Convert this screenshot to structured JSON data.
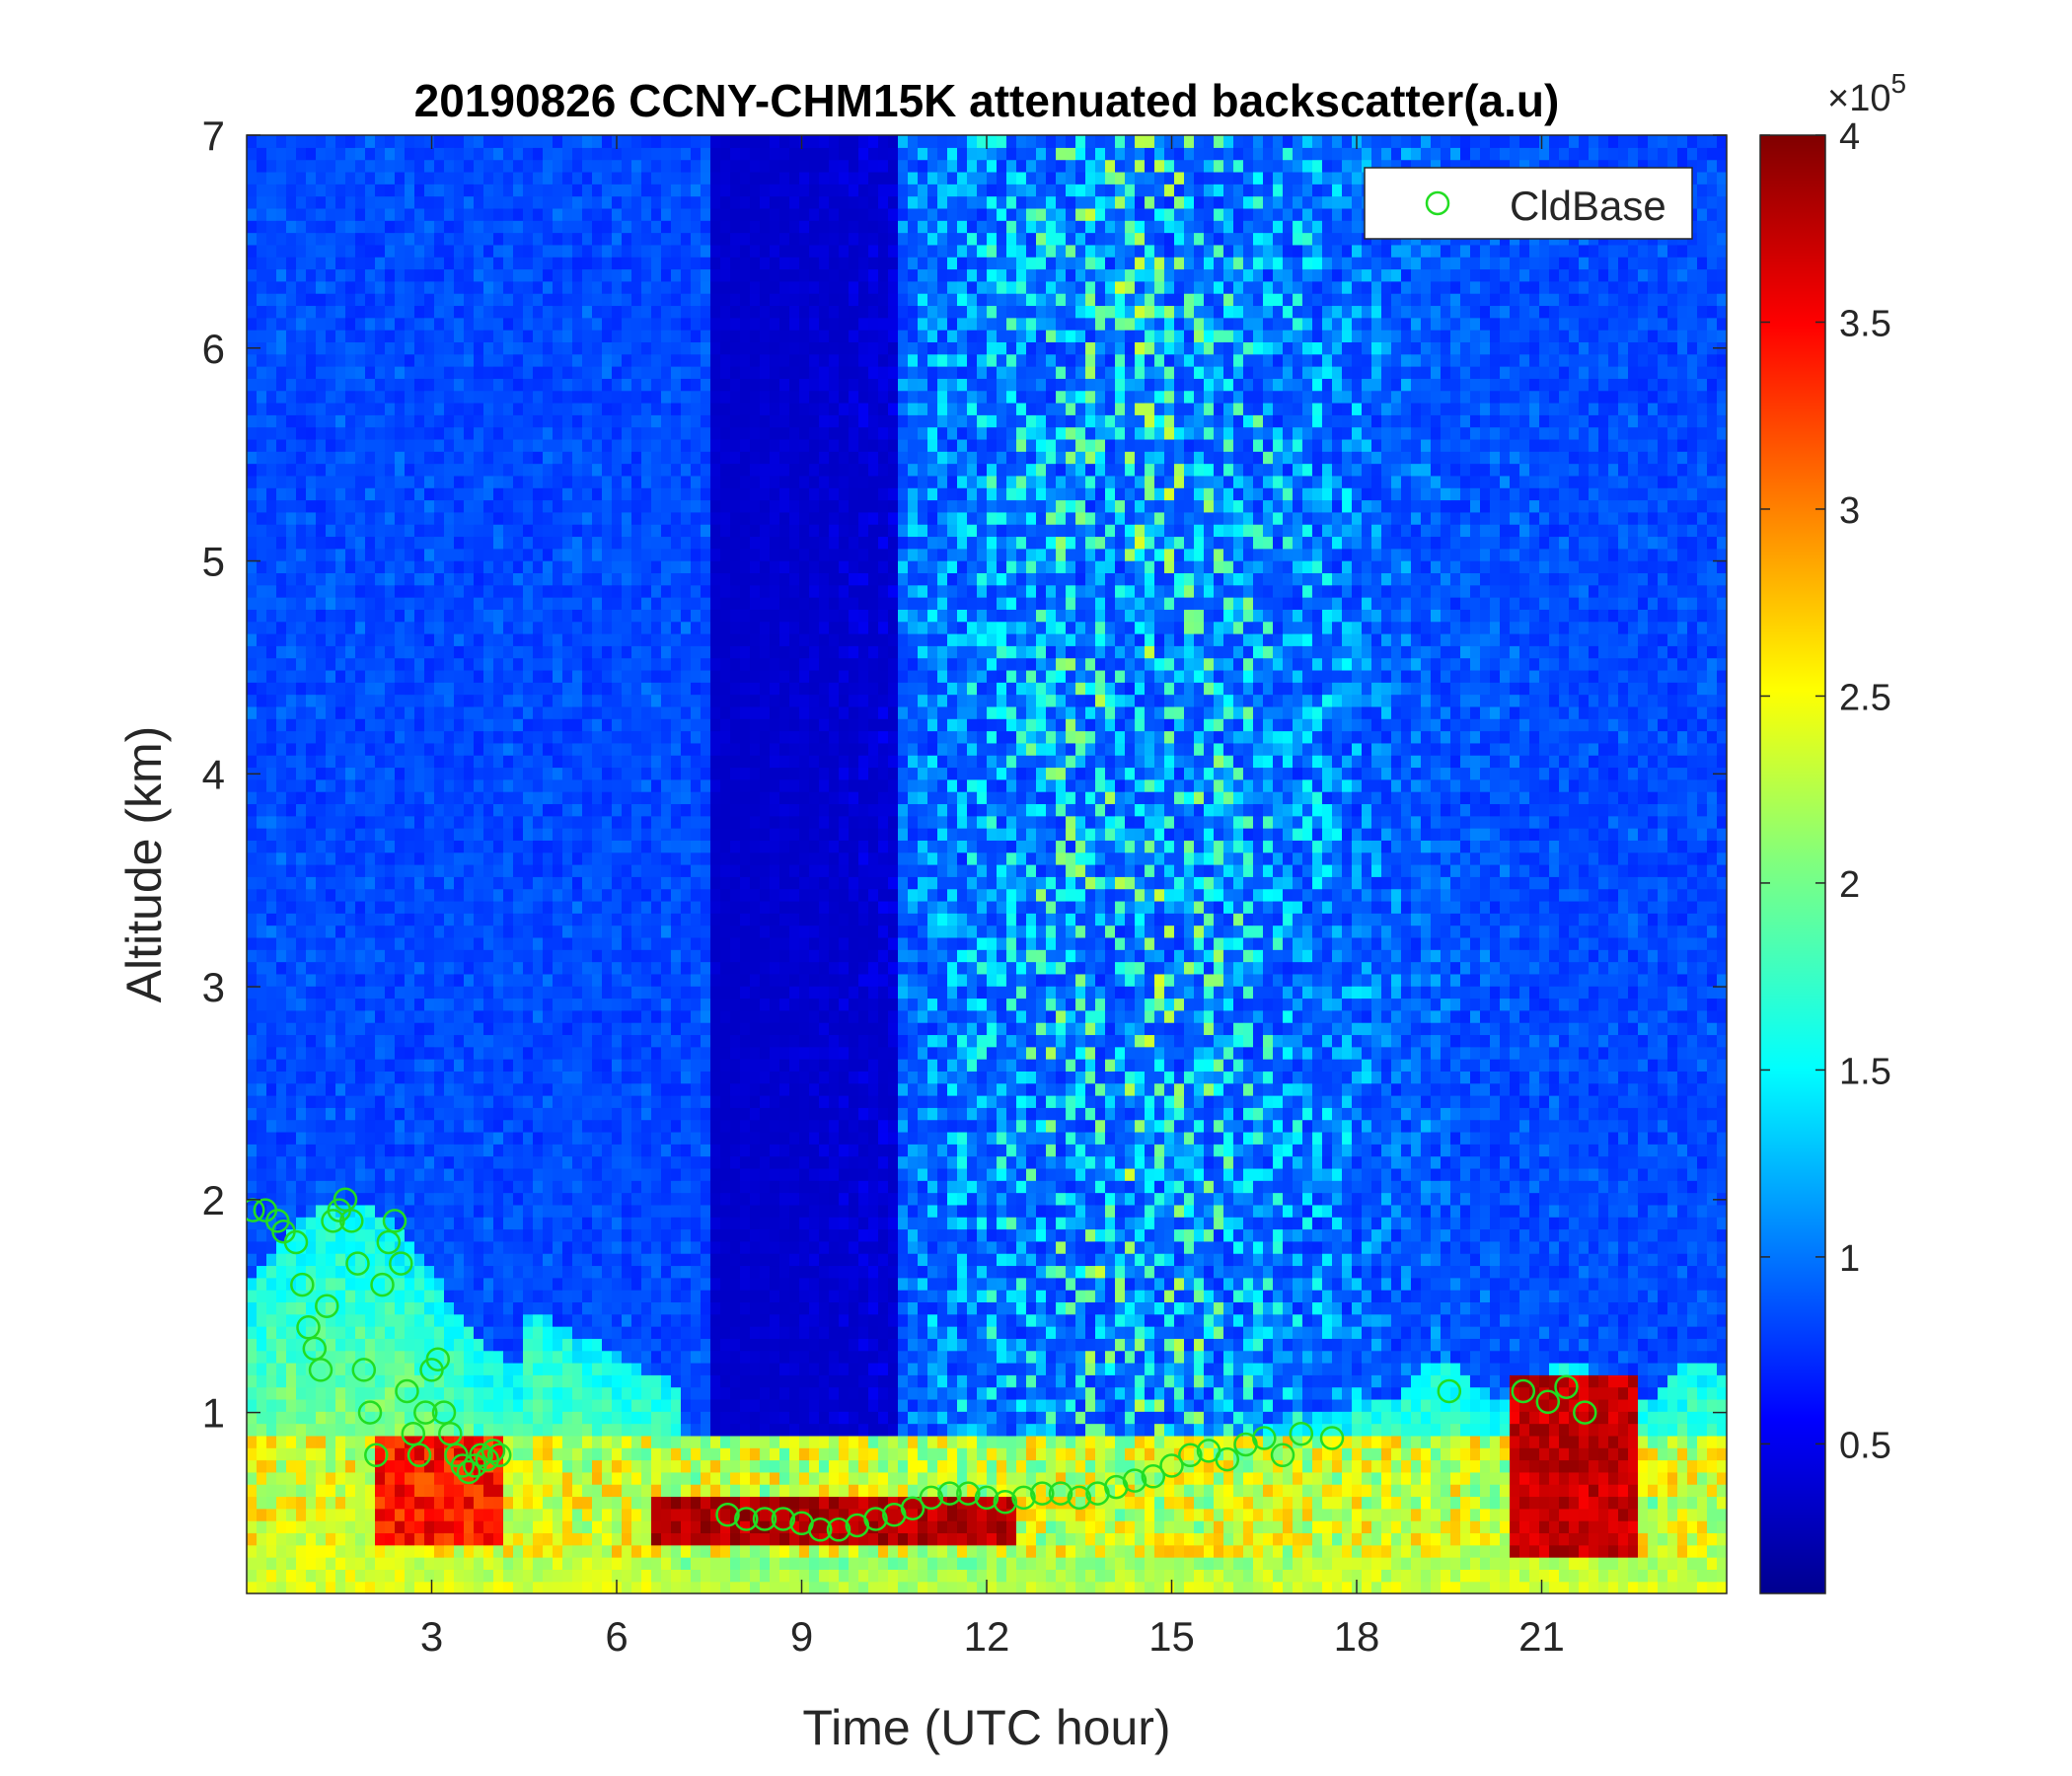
{
  "chart_data": {
    "type": "heatmap",
    "title": "20190826 CCNY-CHM15K attenuated backscatter(a.u)",
    "xlabel": "Time (UTC hour)",
    "ylabel": "Altitude (km)",
    "xlim": [
      0,
      24
    ],
    "ylim": [
      0.15,
      7
    ],
    "xticks": [
      3,
      6,
      9,
      12,
      15,
      18,
      21
    ],
    "yticks": [
      1,
      2,
      3,
      4,
      5,
      6,
      7
    ],
    "colorbar": {
      "colormap": "jet",
      "range": [
        0.1,
        4.0
      ],
      "ticks": [
        0.5,
        1,
        1.5,
        2,
        2.5,
        3,
        3.5,
        4
      ],
      "tick_labels": [
        "0.5",
        "1",
        "1.5",
        "2",
        "2.5",
        "3",
        "3.5",
        "4"
      ],
      "exponent_label": "×10",
      "exponent_power": "5"
    },
    "legend": {
      "entries": [
        "CldBase"
      ],
      "placement": "top-right",
      "marker": "circle",
      "color": "#22dd22"
    },
    "series": [
      {
        "name": "CldBase",
        "marker": "circle",
        "color": "#22dd22",
        "x": [
          0.1,
          0.3,
          0.5,
          0.6,
          0.8,
          0.9,
          1.0,
          1.1,
          1.2,
          1.3,
          1.4,
          1.5,
          1.6,
          1.7,
          1.8,
          1.9,
          2.0,
          2.1,
          2.2,
          2.3,
          2.4,
          2.5,
          2.6,
          2.7,
          2.8,
          2.9,
          3.0,
          3.1,
          3.2,
          3.3,
          3.4,
          3.5,
          3.6,
          3.7,
          3.8,
          3.9,
          4.0,
          4.1,
          7.8,
          8.1,
          8.4,
          8.7,
          9.0,
          9.3,
          9.6,
          9.9,
          10.2,
          10.5,
          10.8,
          11.1,
          11.4,
          11.7,
          12.0,
          12.3,
          12.6,
          12.9,
          13.2,
          13.5,
          13.8,
          14.1,
          14.4,
          14.7,
          15.0,
          15.3,
          15.6,
          15.9,
          16.2,
          16.5,
          16.8,
          17.1,
          17.6,
          19.5,
          20.7,
          21.1,
          21.4,
          21.7
        ],
        "y": [
          1.95,
          1.95,
          1.9,
          1.85,
          1.8,
          1.6,
          1.4,
          1.3,
          1.2,
          1.5,
          1.9,
          1.95,
          2.0,
          1.9,
          1.7,
          1.2,
          1.0,
          0.8,
          1.6,
          1.8,
          1.9,
          1.7,
          1.1,
          0.9,
          0.8,
          1.0,
          1.2,
          1.25,
          1.0,
          0.9,
          0.8,
          0.75,
          0.72,
          0.75,
          0.8,
          0.78,
          0.82,
          0.8,
          0.52,
          0.5,
          0.5,
          0.5,
          0.48,
          0.45,
          0.45,
          0.47,
          0.5,
          0.52,
          0.55,
          0.6,
          0.62,
          0.62,
          0.6,
          0.58,
          0.6,
          0.62,
          0.62,
          0.6,
          0.62,
          0.65,
          0.68,
          0.7,
          0.75,
          0.8,
          0.82,
          0.78,
          0.85,
          0.88,
          0.8,
          0.9,
          0.88,
          1.1,
          1.1,
          1.05,
          1.12,
          1.0
        ]
      }
    ]
  }
}
